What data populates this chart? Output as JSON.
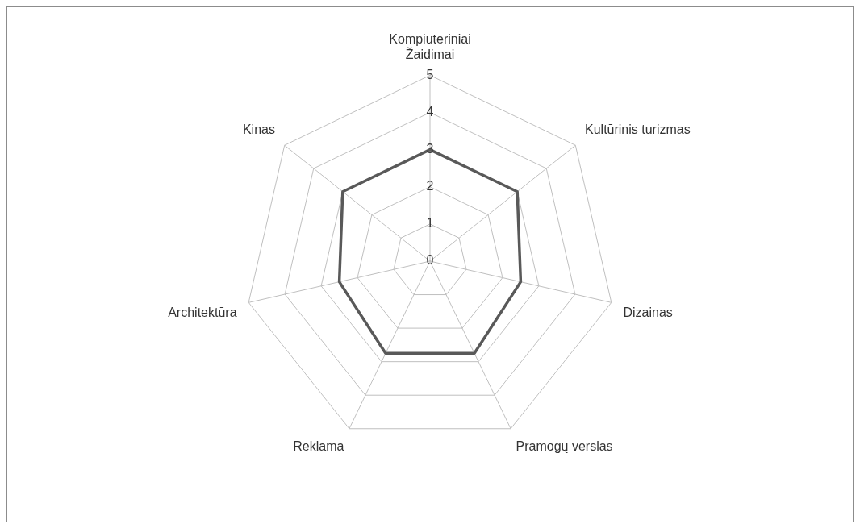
{
  "chart_data": {
    "type": "radar",
    "categories": [
      "Kompiuteriniai Žaidimai",
      "Kultūrinis turizmas",
      "Dizainas",
      "Pramogų verslas",
      "Reklama",
      "Architektūra",
      "Kinas"
    ],
    "series": [
      {
        "color": "#595959",
        "values": [
          3,
          3,
          2.5,
          2.75,
          2.75,
          2.5,
          3
        ]
      }
    ],
    "ylim": [
      0,
      5
    ],
    "yticks": [
      0,
      1,
      2,
      3,
      4,
      5
    ],
    "grid": true,
    "legend": false,
    "marker": "none"
  }
}
